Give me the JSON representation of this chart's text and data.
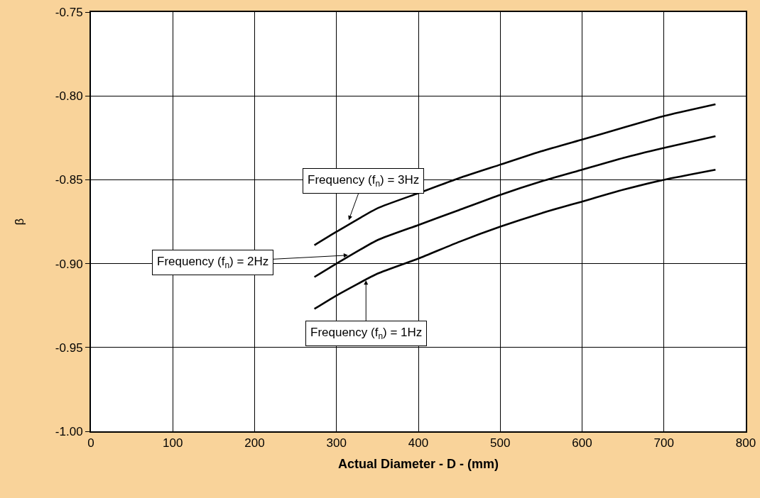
{
  "chart_data": {
    "type": "line",
    "xlabel": "Actual Diameter - D - (mm)",
    "ylabel": "β",
    "series": [
      {
        "color": "#000000",
        "x": [
          273,
          300,
          350,
          400,
          450,
          500,
          550,
          600,
          650,
          700,
          763
        ],
        "values": [
          -0.889,
          -0.881,
          -0.867,
          -0.858,
          -0.849,
          -0.841,
          -0.833,
          -0.826,
          -0.819,
          -0.812,
          -0.805
        ]
      },
      {
        "color": "#000000",
        "x": [
          273,
          300,
          350,
          400,
          450,
          500,
          550,
          600,
          650,
          700,
          763
        ],
        "values": [
          -0.908,
          -0.9,
          -0.886,
          -0.877,
          -0.868,
          -0.859,
          -0.851,
          -0.844,
          -0.837,
          -0.831,
          -0.824
        ]
      },
      {
        "color": "#000000",
        "x": [
          273,
          300,
          350,
          400,
          450,
          500,
          550,
          600,
          650,
          700,
          763
        ],
        "values": [
          -0.927,
          -0.919,
          -0.906,
          -0.897,
          -0.887,
          -0.878,
          -0.87,
          -0.863,
          -0.856,
          -0.85,
          -0.844
        ]
      }
    ],
    "xlim": [
      0,
      800
    ],
    "xticks": [
      0,
      100,
      200,
      300,
      400,
      500,
      600,
      700,
      800
    ],
    "ylim": [
      -1.0,
      -0.75
    ],
    "yticks": [
      {
        "value": -1.0,
        "label": "-1.00"
      },
      {
        "value": -0.95,
        "label": "-0.95"
      },
      {
        "value": -0.9,
        "label": "-0.90"
      },
      {
        "value": -0.85,
        "label": "-0.85"
      },
      {
        "value": -0.8,
        "label": "-0.80"
      },
      {
        "value": -0.75,
        "label": "-0.75"
      }
    ],
    "grid": true,
    "marker": "none",
    "line_style": "solid",
    "annotations": [
      {
        "text": "Frequency (f$_{n}$) = 3Hz",
        "x": 315,
        "y": -0.874
      },
      {
        "text": "Frequency (f$_{n}$) = 2Hz",
        "x": 314,
        "y": -0.895
      },
      {
        "text": "Frequency (f$_{n}$) = 1Hz",
        "x": 336,
        "y": -0.91
      }
    ]
  }
}
